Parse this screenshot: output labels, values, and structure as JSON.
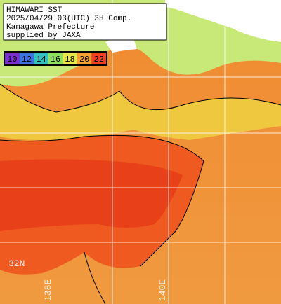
{
  "header": {
    "lines": [
      "HIMAWARI SST",
      "2025/04/29 03(UTC) 3H Comp.",
      "Kanagawa Prefecture",
      "supplied by JAXA"
    ]
  },
  "legend": {
    "labels": [
      "10",
      "12",
      "14",
      "16",
      "18",
      "20",
      "22"
    ],
    "colors": [
      "#7a2fd0",
      "#3f6fe0",
      "#35c0c0",
      "#8fe05a",
      "#e8e84a",
      "#f5a030",
      "#f04020"
    ]
  },
  "grid_labels": {
    "lat": "32N",
    "lon1": "138E",
    "lon2": "140E"
  }
}
